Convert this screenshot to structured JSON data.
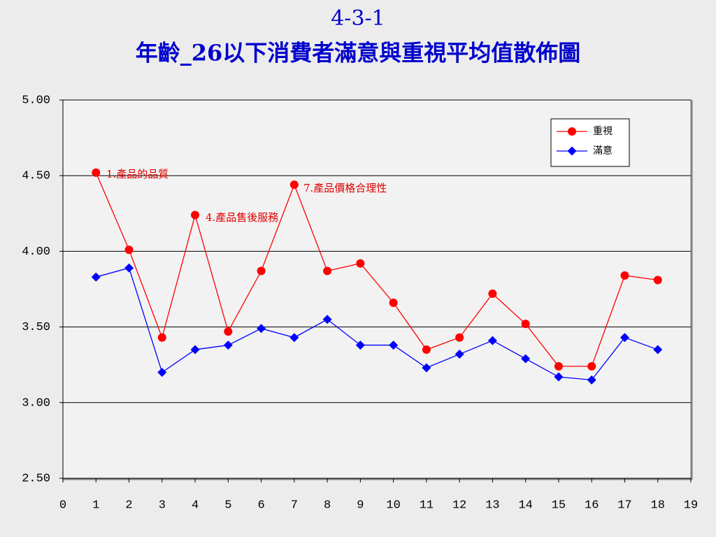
{
  "chart_data": {
    "type": "line",
    "title": "4-3-1",
    "subtitle": "年齡_26以下消費者滿意與重視平均值散佈圖",
    "x": [
      1,
      2,
      3,
      4,
      5,
      6,
      7,
      8,
      9,
      10,
      11,
      12,
      13,
      14,
      15,
      16,
      17,
      18
    ],
    "series": [
      {
        "name": "重視",
        "color": "#ff0000",
        "marker": "circle",
        "values": [
          4.52,
          4.01,
          3.43,
          4.24,
          3.47,
          3.87,
          4.44,
          3.87,
          3.92,
          3.66,
          3.35,
          3.43,
          3.72,
          3.52,
          3.24,
          3.24,
          3.84,
          3.81
        ]
      },
      {
        "name": "滿意",
        "color": "#0000ff",
        "marker": "diamond",
        "values": [
          3.83,
          3.89,
          3.2,
          3.35,
          3.38,
          3.49,
          3.43,
          3.55,
          3.38,
          3.38,
          3.23,
          3.32,
          3.41,
          3.29,
          3.17,
          3.15,
          3.43,
          3.35
        ]
      }
    ],
    "annotations": [
      "1.產品的品質",
      "4.產品售後服務",
      "7.產品價格合理性"
    ],
    "xlim": [
      0,
      19
    ],
    "xticks": [
      0,
      1,
      2,
      3,
      4,
      5,
      6,
      7,
      8,
      9,
      10,
      11,
      12,
      13,
      14,
      15,
      16,
      17,
      18,
      19
    ],
    "ylim": [
      2.5,
      5
    ],
    "yticks": [
      {
        "value": 2.5,
        "label": "2.50"
      },
      {
        "value": 3,
        "label": "3.00"
      },
      {
        "value": 3.5,
        "label": "3.50"
      },
      {
        "value": 4,
        "label": "4.00"
      },
      {
        "value": 4.5,
        "label": "4.50"
      },
      {
        "value": 5,
        "label": "5.00"
      }
    ],
    "grid": true,
    "legend": "upper right"
  }
}
